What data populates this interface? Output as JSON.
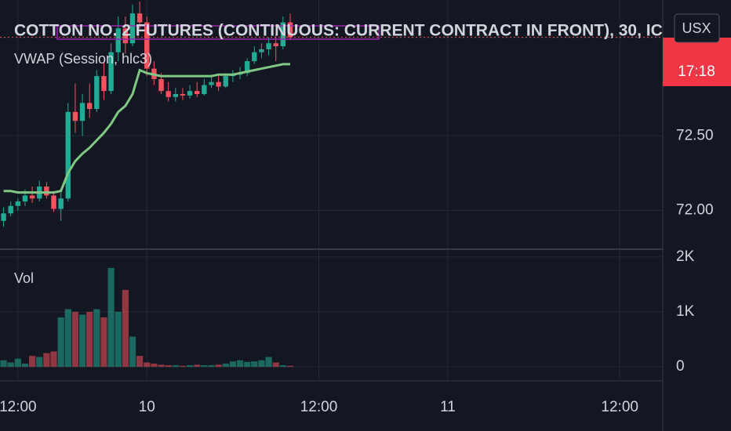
{
  "chart_data": {
    "type": "candlestick",
    "title": "COTTON NO. 2 FUTURES (CONTINUOUS: CURRENT CONTRACT IN FRONT), 30, IC",
    "currency": "USX",
    "countdown": "17:18",
    "indicator_label": "VWAP (Session, hlc3)",
    "volume_label": "Vol",
    "up_color": "#22ab94",
    "down_color": "#f7525f",
    "vwap_color": "#81c784",
    "x": [
      0,
      1,
      2,
      3,
      4,
      5,
      6,
      7,
      8,
      9,
      10,
      11,
      12,
      13,
      14,
      15,
      16,
      17,
      18,
      19,
      20,
      21,
      22,
      23,
      24,
      25,
      26,
      27,
      28,
      29,
      30,
      31,
      32,
      33,
      34,
      35,
      36,
      37,
      38,
      39,
      40
    ],
    "open": [
      71.93,
      71.98,
      72.03,
      72.06,
      72.1,
      72.08,
      72.16,
      72.1,
      72.01,
      72.08,
      72.66,
      72.6,
      72.72,
      72.68,
      72.9,
      72.8,
      73.06,
      73.22,
      73.12,
      73.32,
      73.26,
      72.95,
      72.88,
      72.8,
      72.76,
      72.78,
      72.77,
      72.8,
      72.78,
      72.84,
      72.86,
      72.83,
      72.9,
      72.91,
      72.92,
      73.0,
      73.06,
      73.08,
      73.12,
      73.1,
      73.26
    ],
    "high": [
      72.02,
      72.06,
      72.08,
      72.14,
      72.16,
      72.2,
      72.19,
      72.13,
      72.12,
      72.72,
      72.85,
      72.78,
      72.85,
      72.94,
      73.0,
      73.12,
      73.3,
      73.3,
      73.38,
      73.4,
      73.3,
      73.0,
      72.92,
      72.86,
      72.82,
      72.82,
      72.84,
      72.86,
      72.88,
      72.9,
      72.9,
      72.92,
      72.94,
      72.96,
      73.02,
      73.1,
      73.12,
      73.16,
      73.18,
      73.3,
      73.32
    ],
    "low": [
      71.89,
      71.96,
      72.0,
      72.03,
      72.05,
      72.06,
      72.08,
      71.99,
      71.93,
      72.06,
      72.52,
      72.5,
      72.62,
      72.66,
      72.74,
      72.78,
      73.0,
      73.05,
      73.1,
      73.22,
      72.9,
      72.84,
      72.78,
      72.73,
      72.73,
      72.74,
      72.75,
      72.76,
      72.77,
      72.82,
      72.8,
      72.82,
      72.86,
      72.88,
      72.9,
      72.98,
      73.02,
      73.04,
      73.0,
      73.08,
      73.14
    ],
    "close": [
      71.98,
      72.03,
      72.06,
      72.1,
      72.08,
      72.16,
      72.1,
      72.01,
      72.08,
      72.66,
      72.6,
      72.72,
      72.68,
      72.9,
      72.8,
      73.06,
      73.22,
      73.12,
      73.32,
      73.26,
      72.95,
      72.88,
      72.8,
      72.76,
      72.78,
      72.77,
      72.8,
      72.78,
      72.84,
      72.86,
      72.83,
      72.9,
      72.91,
      72.92,
      73.0,
      73.06,
      73.08,
      73.12,
      73.1,
      73.26,
      73.16
    ],
    "vwap": [
      72.13,
      72.13,
      72.12,
      72.12,
      72.12,
      72.12,
      72.12,
      72.12,
      72.13,
      72.25,
      72.33,
      72.38,
      72.42,
      72.47,
      72.52,
      72.58,
      72.66,
      72.7,
      72.78,
      72.94,
      72.92,
      72.91,
      72.9,
      72.9,
      72.9,
      72.9,
      72.9,
      72.9,
      72.9,
      72.9,
      72.91,
      72.91,
      72.91,
      72.92,
      72.93,
      72.94,
      72.95,
      72.96,
      72.97,
      72.98,
      72.98
    ],
    "volume": [
      120,
      80,
      150,
      60,
      200,
      180,
      250,
      280,
      900,
      1050,
      1000,
      950,
      1000,
      1050,
      900,
      1800,
      1000,
      1400,
      550,
      200,
      80,
      60,
      40,
      30,
      30,
      20,
      30,
      40,
      30,
      30,
      40,
      60,
      100,
      120,
      90,
      100,
      120,
      180,
      80,
      30,
      20
    ],
    "ylim": [
      71.74,
      73.41
    ],
    "yticks": [
      {
        "value": 72.5,
        "label": "72.50"
      },
      {
        "value": 72,
        "label": "72.00"
      }
    ],
    "vol_ylim": [
      -240,
      2140
    ],
    "vol_yticks": [
      {
        "value": 2000,
        "label": "2K"
      },
      {
        "value": 1000,
        "label": "1K"
      },
      0
    ],
    "xlim": [
      -0.5,
      92
    ],
    "xticks": [
      {
        "value": 2,
        "label": "12:00"
      },
      {
        "value": 20,
        "label": "10"
      },
      {
        "value": 44,
        "label": "12:00"
      },
      {
        "value": 62,
        "label": "11"
      },
      {
        "value": 86,
        "label": "12:00"
      }
    ],
    "grid": true
  }
}
